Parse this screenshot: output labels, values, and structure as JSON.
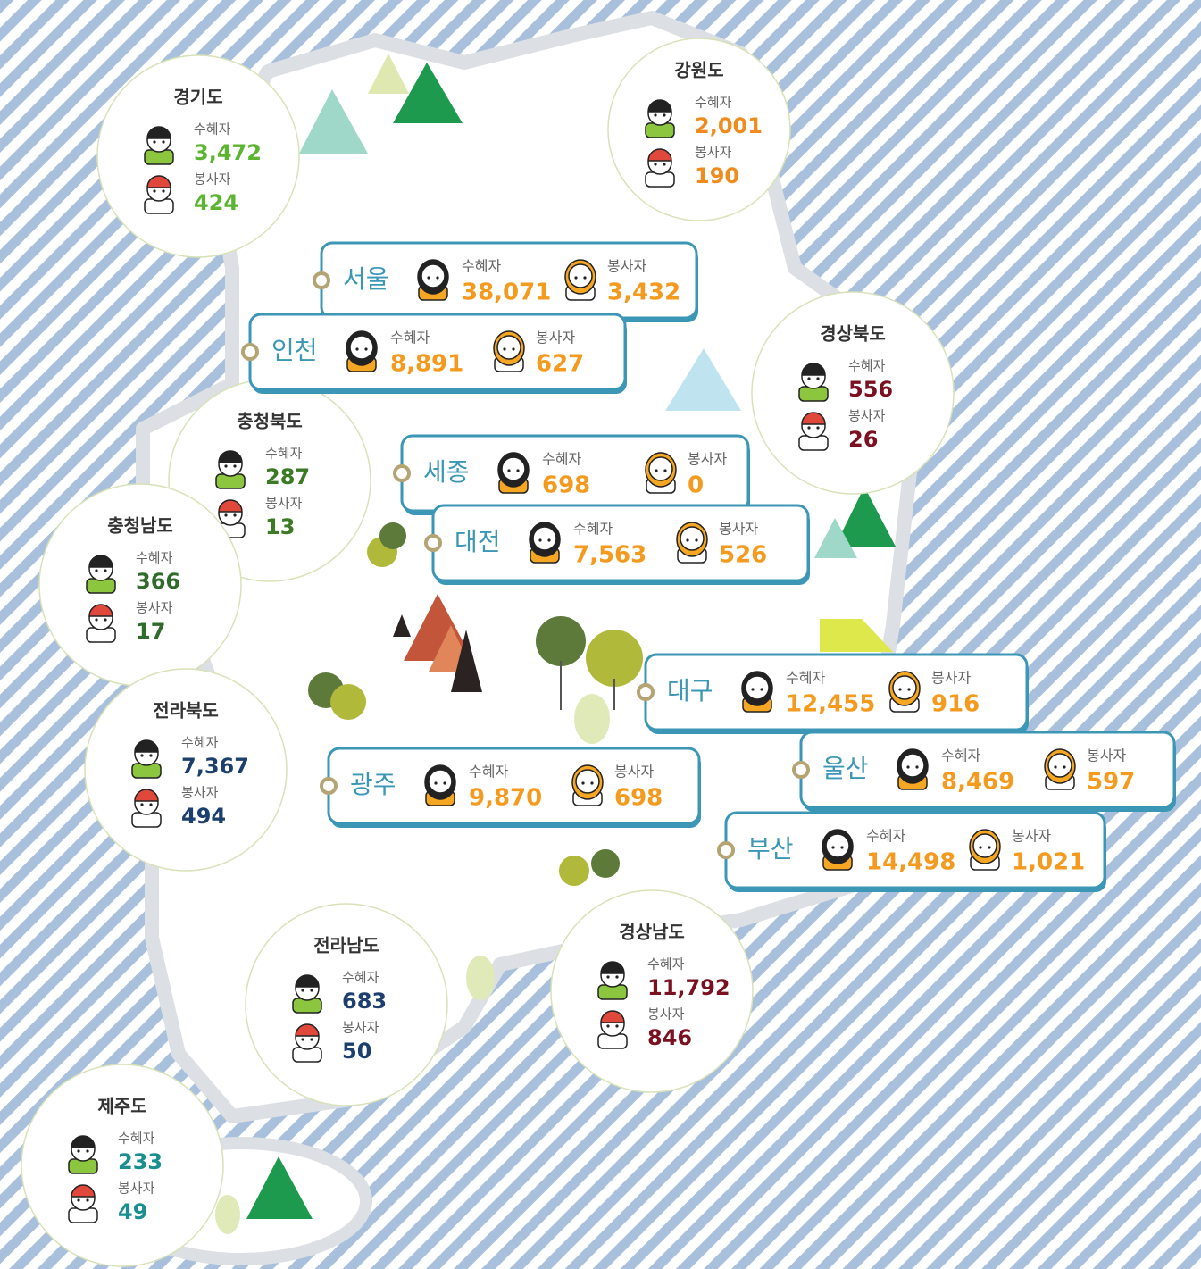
{
  "labels": {
    "recipients": "수혜자",
    "volunteers": "봉사자"
  },
  "provinces": [
    {
      "name": "경기도",
      "recipients": "3,472",
      "volunteers": "424"
    },
    {
      "name": "강원도",
      "recipients": "2,001",
      "volunteers": "190"
    },
    {
      "name": "경상북도",
      "recipients": "556",
      "volunteers": "26"
    },
    {
      "name": "충청북도",
      "recipients": "287",
      "volunteers": "13"
    },
    {
      "name": "충청남도",
      "recipients": "366",
      "volunteers": "17"
    },
    {
      "name": "전라북도",
      "recipients": "7,367",
      "volunteers": "494"
    },
    {
      "name": "전라남도",
      "recipients": "683",
      "volunteers": "50"
    },
    {
      "name": "경상남도",
      "recipients": "11,792",
      "volunteers": "846"
    },
    {
      "name": "제주도",
      "recipients": "233",
      "volunteers": "49"
    }
  ],
  "cities": [
    {
      "name": "서울",
      "recipients": "38,071",
      "volunteers": "3,432"
    },
    {
      "name": "인천",
      "recipients": "8,891",
      "volunteers": "627"
    },
    {
      "name": "세종",
      "recipients": "698",
      "volunteers": "0"
    },
    {
      "name": "대전",
      "recipients": "7,563",
      "volunteers": "526"
    },
    {
      "name": "대구",
      "recipients": "12,455",
      "volunteers": "916"
    },
    {
      "name": "울산",
      "recipients": "8,469",
      "volunteers": "597"
    },
    {
      "name": "광주",
      "recipients": "9,870",
      "volunteers": "698"
    },
    {
      "name": "부산",
      "recipients": "14,498",
      "volunteers": "1,021"
    }
  ]
}
